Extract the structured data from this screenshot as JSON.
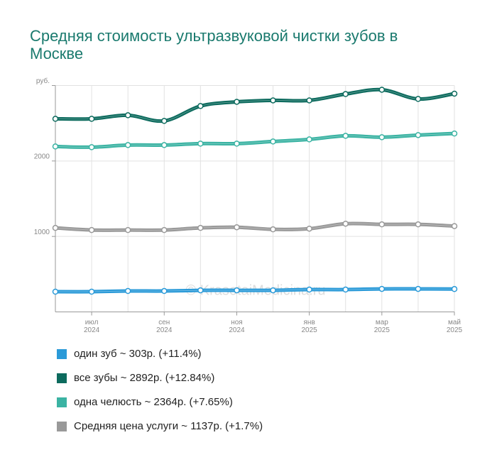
{
  "chart_data": {
    "type": "line",
    "title": "Средняя стоимость ультразвуковой чистки зубов в Москве",
    "watermark": "© KrasotaiMedicina.ru",
    "categories": [
      null,
      "июл 2024",
      null,
      "сен 2024",
      null,
      "ноя 2024",
      null,
      "янв 2025",
      null,
      "мар 2025",
      null,
      "май 2025"
    ],
    "ylim": [
      0,
      3000
    ],
    "yticks": [
      1000,
      2000,
      {
        "value": 3000,
        "label": "руб."
      }
    ],
    "grid": true,
    "series": [
      {
        "name": "один зуб ~ 303р. (+11.4%)",
        "color": "#2a9ad8",
        "values": [
          268,
          268,
          277,
          277,
          286,
          286,
          286,
          296,
          296,
          305,
          305,
          303
        ]
      },
      {
        "name": "все зубы ~ 2892р. (+12.84%)",
        "color": "#0d6b5e",
        "values": [
          2559,
          2559,
          2606,
          2531,
          2728,
          2784,
          2803,
          2803,
          2887,
          2944,
          2822,
          2892
        ]
      },
      {
        "name": "одна челюсть ~ 2364р. (+7.65%)",
        "color": "#3bb3a3",
        "values": [
          2192,
          2183,
          2211,
          2211,
          2230,
          2230,
          2258,
          2286,
          2333,
          2315,
          2343,
          2364
        ]
      },
      {
        "name": "Средняя цена услуги ~ 1137р. (+1.7%)",
        "color": "#999999",
        "values": [
          1113,
          1085,
          1085,
          1085,
          1113,
          1122,
          1094,
          1103,
          1169,
          1160,
          1160,
          1137
        ]
      }
    ]
  }
}
